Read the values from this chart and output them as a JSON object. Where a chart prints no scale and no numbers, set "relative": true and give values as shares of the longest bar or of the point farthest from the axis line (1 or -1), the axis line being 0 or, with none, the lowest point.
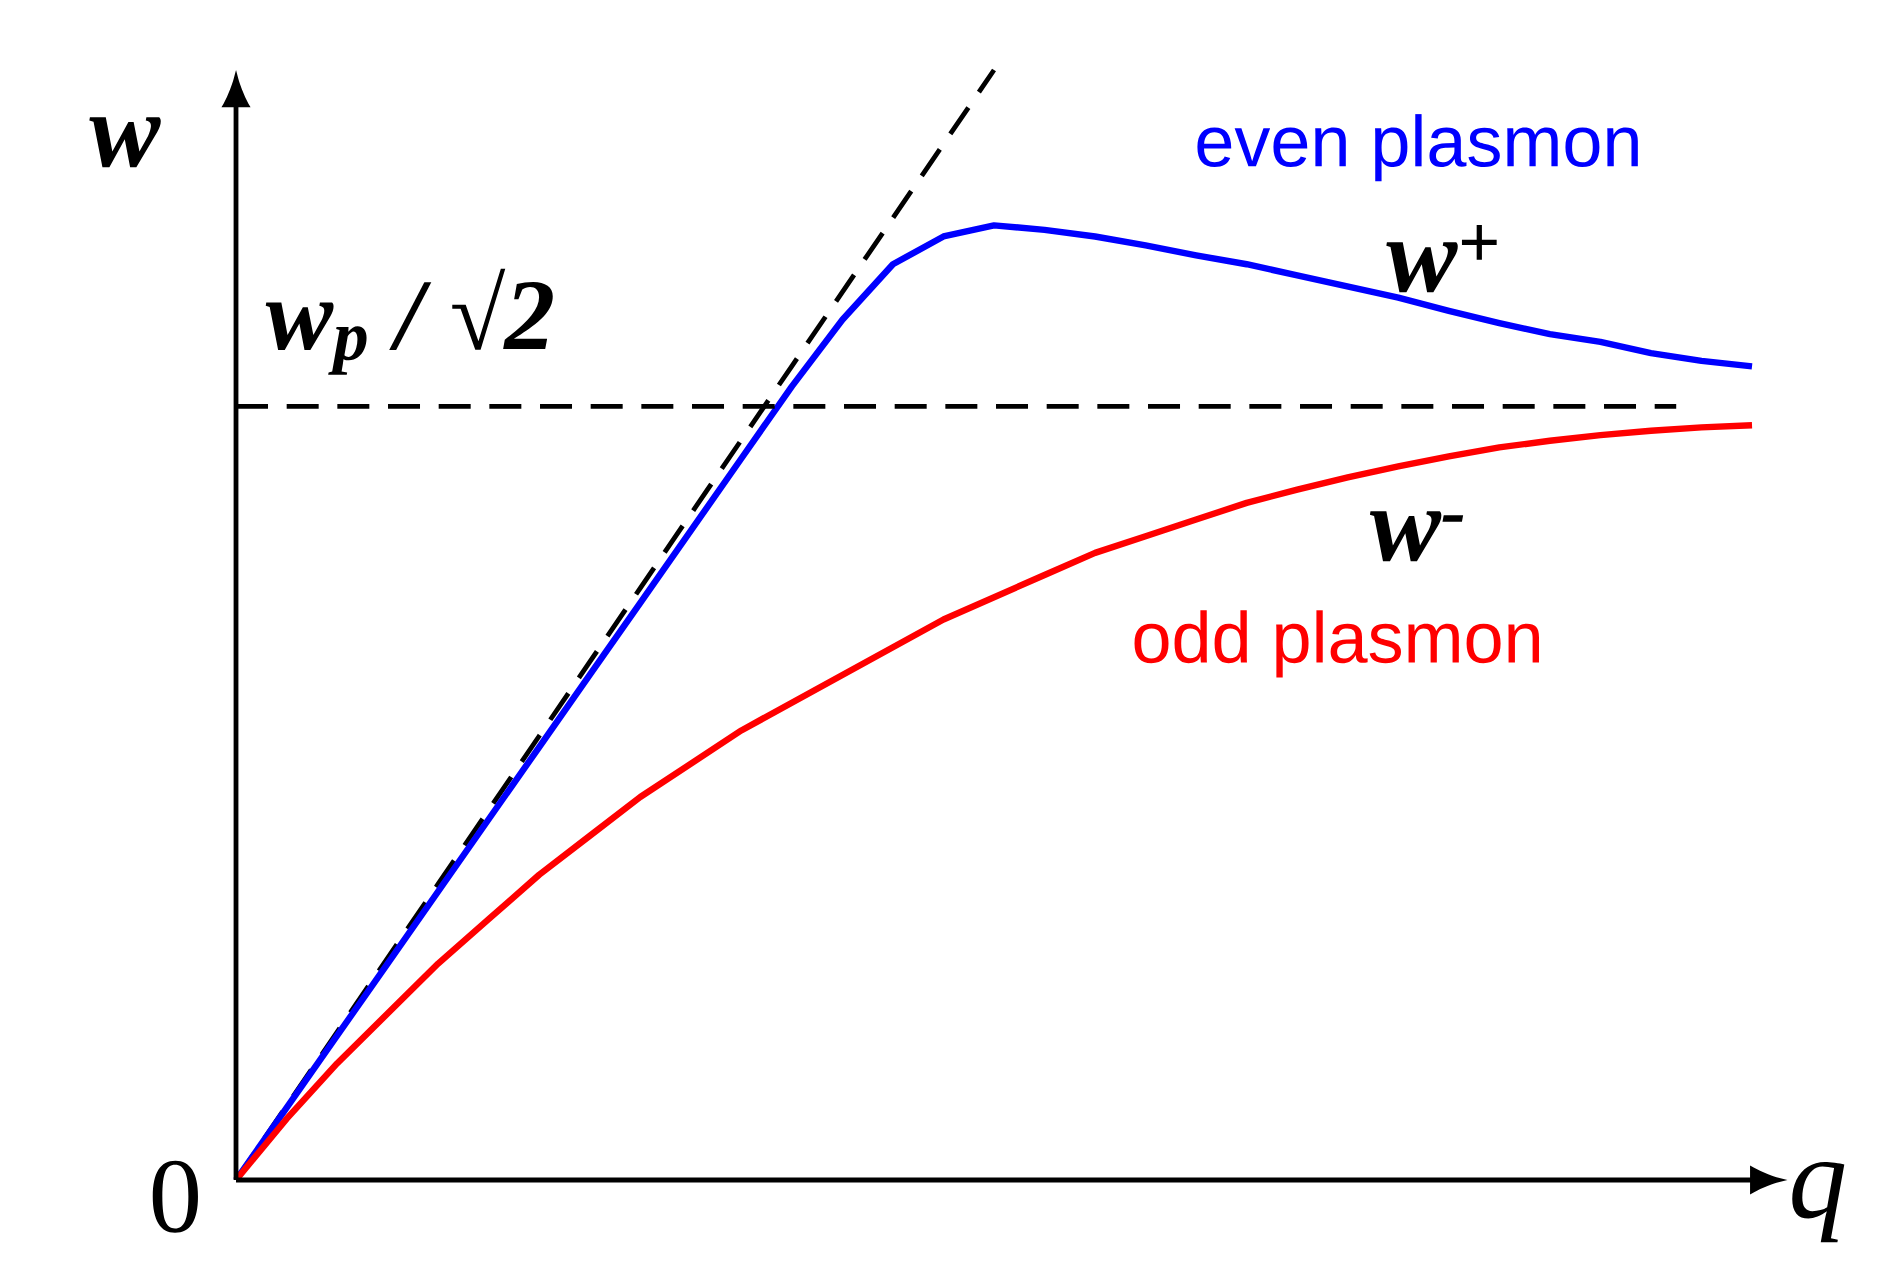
{
  "chart_data": {
    "type": "line",
    "relative": true,
    "xlabel": "q",
    "ylabel": "w",
    "categories": [
      null,
      null,
      null,
      null,
      null,
      null,
      null,
      null,
      null,
      null,
      null,
      null,
      null,
      null,
      null,
      null,
      null,
      null,
      null,
      null,
      null,
      null,
      null,
      null,
      null,
      null,
      null,
      null,
      null,
      null,
      null
    ],
    "series": [
      {
        "color": "#000000",
        "line_style": "dashed",
        "values": [
          0,
          0.0667,
          0.1333,
          0.2,
          0.2667,
          0.3333,
          0.4,
          0.4667,
          0.5333,
          0.6,
          0.6667,
          0.7333,
          0.8,
          0.8667,
          0.9333,
          1.0,
          null,
          null,
          null,
          null,
          null,
          null,
          null,
          null,
          null,
          null,
          null,
          null,
          null,
          null,
          null
        ]
      },
      {
        "name": "even plasmon",
        "color": "#0000ff",
        "values": [
          0,
          0.065,
          0.13,
          0.195,
          0.26,
          0.325,
          0.39,
          0.455,
          0.52,
          0.585,
          0.65,
          0.715,
          0.775,
          0.825,
          0.85,
          0.86,
          0.856,
          0.85,
          0.842,
          0.833,
          0.825,
          0.815,
          0.805,
          0.795,
          0.783,
          0.772,
          0.762,
          0.755,
          0.745,
          0.738,
          0.733
        ]
      },
      {
        "name": "odd plasmon",
        "color": "#ff0000",
        "values": [
          0,
          0.055,
          0.105,
          0.15,
          0.195,
          0.235,
          0.275,
          0.31,
          0.345,
          0.375,
          0.405,
          0.43,
          0.455,
          0.48,
          0.505,
          0.525,
          0.545,
          0.565,
          0.58,
          0.595,
          0.61,
          0.622,
          0.633,
          0.643,
          0.652,
          0.66,
          0.666,
          0.671,
          0.675,
          0.678,
          0.68
        ]
      }
    ],
    "ref_lines": [
      {
        "axis": "y",
        "value": 0.697,
        "label": "w$_{p}$ / √2",
        "color": "#000000",
        "line_style": "dashed"
      }
    ],
    "annotations": [
      "w$^{+}$",
      "w$^{-}$",
      "0"
    ]
  }
}
